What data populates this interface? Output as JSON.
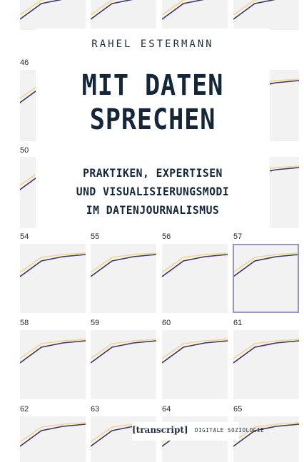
{
  "book": {
    "author": "RAHEL ESTERMANN",
    "title_line1": "MIT DATEN",
    "title_line2": "SPRECHEN",
    "subtitle_line1": "PRAKTIKEN, EXPERTISEN",
    "subtitle_line2": "UND VISUALISIERUNGSMODI",
    "subtitle_line3": "IM DATENJOURNALISMUS",
    "publisher": "[transcript]",
    "series": "DIGITALE SOZIOLOGIE"
  },
  "colors": {
    "line_dark": "#3a3566",
    "line_light": "#f2d48f",
    "panel_bg": "#f2f2f2",
    "text": "#152638",
    "highlight": "#9a93c6"
  },
  "panels": [
    {
      "n": "46"
    },
    {
      "n": "50"
    },
    {
      "n": "54"
    },
    {
      "n": "55"
    },
    {
      "n": "56"
    },
    {
      "n": "57"
    },
    {
      "n": "58"
    },
    {
      "n": "59"
    },
    {
      "n": "60"
    },
    {
      "n": "61"
    },
    {
      "n": "62"
    },
    {
      "n": "63"
    },
    {
      "n": "64"
    },
    {
      "n": "65"
    }
  ]
}
